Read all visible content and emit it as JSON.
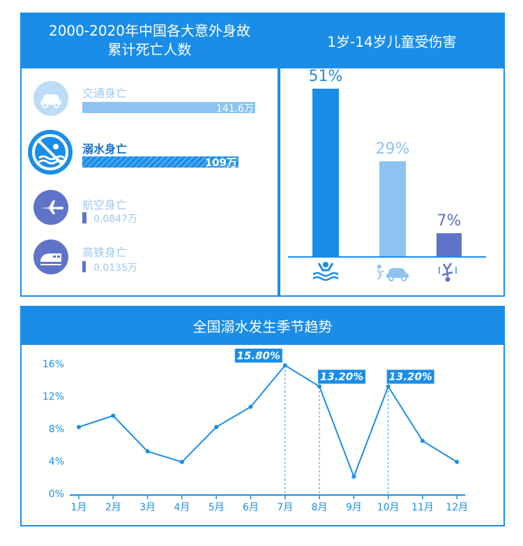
{
  "colors": {
    "primary": "#1a8de8",
    "light": "#8cc3f2",
    "purple": "#5f73c8",
    "text_light": "#9dc8ee",
    "text_dark": "#1a6fc6"
  },
  "left_panel": {
    "title": "2000-2020年中国各大意外身故\n累计死亡人数",
    "items": [
      {
        "label": "交通身亡",
        "value": "141.6万",
        "icon": "car-icon"
      },
      {
        "label": "溺水身亡",
        "value": "109万",
        "icon": "no-swimming-icon"
      },
      {
        "label": "航空身亡",
        "value": "0.0847万",
        "icon": "airplane-icon"
      },
      {
        "label": "高铁身亡",
        "value": "0.0135万",
        "icon": "train-icon"
      }
    ]
  },
  "right_panel": {
    "title": "1岁-14岁儿童受伤害",
    "bars": [
      {
        "pct": 51,
        "label": "51%",
        "icon": "drowning-icon",
        "color": "#1a8de8"
      },
      {
        "pct": 29,
        "label": "29%",
        "icon": "car-accident-icon",
        "color": "#8cc3f2"
      },
      {
        "pct": 7,
        "label": "7%",
        "icon": "falling-person-icon",
        "color": "#5f73c8"
      }
    ]
  },
  "chart_data": {
    "type": "line",
    "title": "全国溺水发生季节趋势",
    "categories": [
      "1月",
      "2月",
      "3月",
      "4月",
      "5月",
      "6月",
      "7月",
      "8月",
      "9月",
      "10月",
      "11月",
      "12月"
    ],
    "values": [
      8.2,
      9.6,
      5.2,
      3.9,
      8.2,
      10.7,
      15.8,
      13.2,
      2.1,
      13.2,
      6.5,
      3.9
    ],
    "ylim": [
      0,
      16
    ],
    "y_ticks": [
      "0%",
      "4%",
      "8%",
      "12%",
      "16%"
    ],
    "annotations": [
      {
        "index": 6,
        "label": "15.80%"
      },
      {
        "index": 7,
        "label": "13.20%"
      },
      {
        "index": 9,
        "label": "13.20%"
      }
    ]
  }
}
